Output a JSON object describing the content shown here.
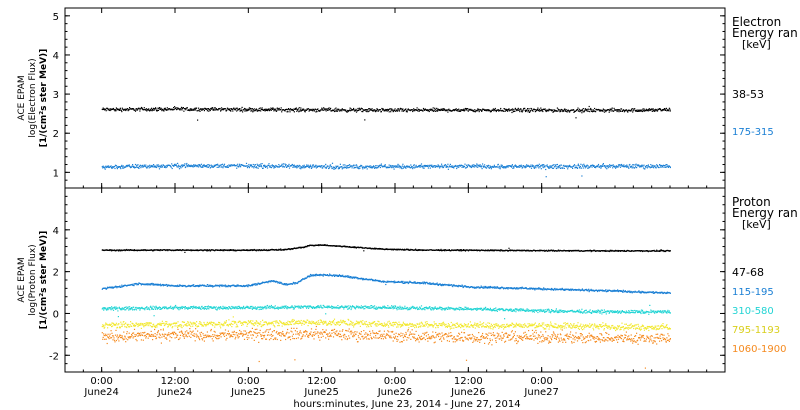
{
  "chart_data": [
    {
      "type": "scatter",
      "ylabel_lines": [
        "ACE EPAM",
        "log(Electron Flux)",
        "[1/(cm²s ster MeV)]"
      ],
      "ylim": [
        0.6,
        5.2
      ],
      "yticks": [
        1,
        2,
        3,
        4,
        5
      ],
      "legend_title_lines": [
        "Electron",
        "Energy ran",
        "[keV]"
      ],
      "series": [
        {
          "name": "38-53",
          "color": "#000000",
          "base": 2.62,
          "spread": 0.07,
          "x": [
            0,
            12,
            24,
            36,
            48,
            60,
            72,
            84,
            93
          ],
          "y": [
            2.62,
            2.63,
            2.62,
            2.61,
            2.6,
            2.61,
            2.6,
            2.6,
            2.61
          ]
        },
        {
          "name": "175-315",
          "color": "#1a7fd4",
          "base": 1.17,
          "spread": 0.08,
          "x": [
            0,
            12,
            24,
            36,
            48,
            60,
            72,
            84,
            93
          ],
          "y": [
            1.15,
            1.18,
            1.18,
            1.16,
            1.16,
            1.17,
            1.16,
            1.17,
            1.17
          ]
        }
      ]
    },
    {
      "type": "scatter",
      "ylabel_lines": [
        "ACE EPAM",
        "log(Proton Flux)",
        "[1/(cm²s ster MeV)]"
      ],
      "ylim": [
        -2.8,
        6.0
      ],
      "yticks": [
        -2,
        0,
        2,
        4
      ],
      "legend_title_lines": [
        "Proton",
        "Energy ran",
        "[keV]"
      ],
      "series": [
        {
          "name": "47-68",
          "color": "#000000",
          "spread": 0.04,
          "x": [
            0,
            12,
            24,
            30,
            33,
            34,
            36,
            40,
            46,
            52,
            60,
            72,
            84,
            93
          ],
          "y": [
            3.05,
            3.06,
            3.05,
            3.08,
            3.2,
            3.28,
            3.3,
            3.22,
            3.1,
            3.06,
            3.05,
            3.03,
            3.02,
            3.02
          ]
        },
        {
          "name": "115-195",
          "color": "#1a7fd4",
          "spread": 0.07,
          "x": [
            0,
            6,
            12,
            18,
            24,
            28,
            30,
            32,
            34,
            36,
            40,
            46,
            52,
            56,
            60,
            72,
            84,
            93
          ],
          "y": [
            1.2,
            1.45,
            1.35,
            1.35,
            1.35,
            1.6,
            1.4,
            1.5,
            1.85,
            1.88,
            1.8,
            1.55,
            1.5,
            1.4,
            1.3,
            1.2,
            1.1,
            1.0
          ]
        },
        {
          "name": "310-580",
          "color": "#22d4d4",
          "spread": 0.12,
          "x": [
            0,
            12,
            24,
            36,
            48,
            60,
            72,
            84,
            93
          ],
          "y": [
            0.25,
            0.3,
            0.3,
            0.35,
            0.3,
            0.25,
            0.15,
            0.1,
            0.1
          ]
        },
        {
          "name": "795-1193",
          "color": "#f2e830",
          "spread": 0.22,
          "x": [
            0,
            12,
            24,
            36,
            48,
            60,
            72,
            84,
            93
          ],
          "y": [
            -0.55,
            -0.5,
            -0.45,
            -0.4,
            -0.5,
            -0.55,
            -0.55,
            -0.6,
            -0.65
          ]
        },
        {
          "name": "1060-1900",
          "color": "#f58a1f",
          "spread": 0.4,
          "x": [
            0,
            12,
            24,
            36,
            48,
            60,
            72,
            84,
            93
          ],
          "y": [
            -1.1,
            -1.0,
            -1.0,
            -0.95,
            -1.05,
            -1.1,
            -1.1,
            -1.15,
            -1.2
          ]
        }
      ]
    }
  ],
  "x_axis": {
    "xlim": [
      -6,
      102
    ],
    "major_ticks": [
      {
        "x": 0,
        "time": "0:00",
        "date": "June24"
      },
      {
        "x": 12,
        "time": "12:00",
        "date": "June24"
      },
      {
        "x": 24,
        "time": "0:00",
        "date": "June25"
      },
      {
        "x": 36,
        "time": "12:00",
        "date": "June25"
      },
      {
        "x": 48,
        "time": "0:00",
        "date": "June26"
      },
      {
        "x": 60,
        "time": "12:00",
        "date": "June26"
      },
      {
        "x": 72,
        "time": "0:00",
        "date": "June27"
      }
    ],
    "xlabel": "hours:minutes, June 23, 2014 - June 27, 2014"
  }
}
